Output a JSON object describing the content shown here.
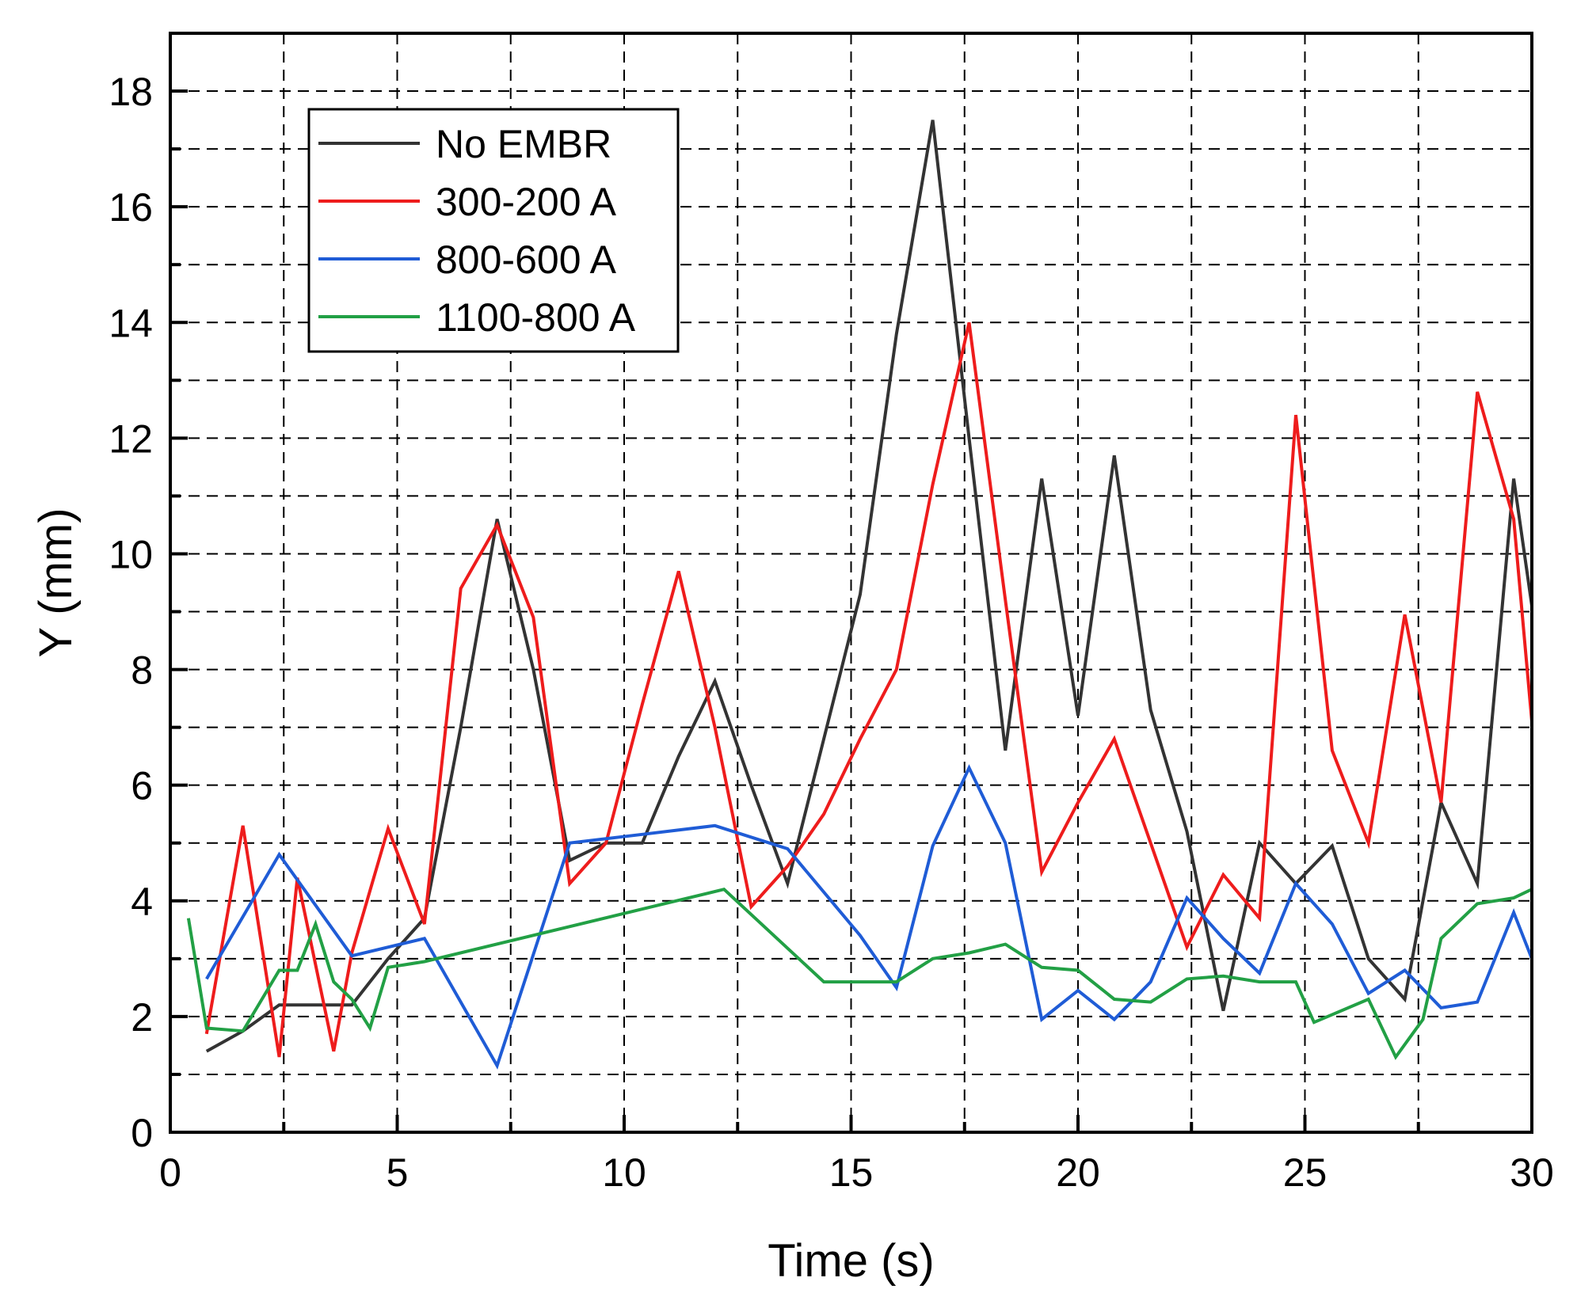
{
  "chart_data": {
    "type": "line",
    "title": "",
    "xlabel": "Time (s)",
    "ylabel": "Y (mm)",
    "xlim": [
      0,
      30
    ],
    "ylim": [
      0,
      19
    ],
    "xticks": [
      0,
      5,
      10,
      15,
      20,
      25,
      30
    ],
    "xtick_labels": [
      "0",
      "5",
      "10",
      "15",
      "20",
      "25",
      "30"
    ],
    "yticks": [
      0,
      2,
      4,
      6,
      8,
      10,
      12,
      14,
      16,
      18
    ],
    "ytick_labels": [
      "0",
      "2",
      "4",
      "6",
      "8",
      "10",
      "12",
      "14",
      "16",
      "18"
    ],
    "grid": true,
    "legend_position": "top-left",
    "series": [
      {
        "name": "No EMBR",
        "color": "#333333",
        "x": [
          0.8,
          1.6,
          2.4,
          3.2,
          4.0,
          4.8,
          5.6,
          6.4,
          7.2,
          8.0,
          8.8,
          9.6,
          10.4,
          11.2,
          12.0,
          12.8,
          13.6,
          14.4,
          15.2,
          16.0,
          16.8,
          17.6,
          18.4,
          19.2,
          20.0,
          20.8,
          21.6,
          22.4,
          23.2,
          24.0,
          24.8,
          25.6,
          26.4,
          27.2,
          28.0,
          28.8,
          29.6,
          30.0
        ],
        "y": [
          1.4,
          1.75,
          2.2,
          2.2,
          2.2,
          3.0,
          3.7,
          7.0,
          10.6,
          8.0,
          4.7,
          5.0,
          5.0,
          6.5,
          7.8,
          6.0,
          4.3,
          6.8,
          9.3,
          13.8,
          17.5,
          12.0,
          6.6,
          11.3,
          7.2,
          11.7,
          7.3,
          5.2,
          2.1,
          5.0,
          4.3,
          4.95,
          3.0,
          2.3,
          5.7,
          4.3,
          11.3,
          9.1
        ]
      },
      {
        "name": "300-200 A",
        "color": "#ee1c1c",
        "x": [
          0.8,
          1.6,
          2.4,
          2.8,
          3.6,
          4.0,
          4.8,
          5.6,
          6.4,
          7.2,
          8.0,
          8.8,
          9.6,
          10.4,
          11.2,
          12.0,
          12.8,
          13.6,
          14.4,
          15.2,
          16.0,
          16.8,
          17.6,
          18.4,
          19.2,
          20.0,
          20.8,
          21.6,
          22.4,
          23.2,
          24.0,
          24.8,
          25.6,
          26.4,
          27.2,
          28.0,
          28.8,
          29.6,
          30.0
        ],
        "y": [
          1.7,
          5.3,
          1.3,
          4.4,
          1.4,
          3.1,
          5.25,
          3.6,
          9.4,
          10.5,
          8.9,
          4.3,
          5.0,
          7.4,
          9.7,
          7.0,
          3.9,
          4.6,
          5.5,
          6.8,
          8.0,
          11.2,
          14.0,
          9.2,
          4.5,
          5.7,
          6.8,
          5.0,
          3.2,
          4.45,
          3.7,
          12.4,
          6.6,
          5.0,
          8.95,
          5.7,
          12.8,
          10.6,
          7.1
        ]
      },
      {
        "name": "800-600 A",
        "color": "#1f5cd6",
        "x": [
          0.8,
          2.4,
          4.0,
          5.6,
          7.2,
          8.8,
          10.4,
          12.0,
          13.6,
          15.2,
          16.0,
          16.8,
          17.6,
          18.4,
          19.2,
          20.0,
          20.8,
          21.6,
          22.4,
          23.2,
          24.0,
          24.8,
          25.6,
          26.4,
          27.2,
          28.0,
          28.8,
          29.6,
          30.0
        ],
        "y": [
          2.65,
          4.8,
          3.05,
          3.35,
          1.15,
          5.0,
          5.15,
          5.3,
          4.9,
          3.4,
          2.5,
          4.95,
          6.3,
          5.0,
          1.95,
          2.45,
          1.95,
          2.6,
          4.05,
          3.35,
          2.75,
          4.3,
          3.6,
          2.4,
          2.8,
          2.15,
          2.25,
          3.8,
          3.0
        ]
      },
      {
        "name": "1100-800 A",
        "color": "#22a045",
        "x": [
          0.4,
          0.8,
          1.6,
          2.4,
          2.8,
          3.2,
          3.6,
          4.0,
          4.4,
          4.8,
          5.6,
          12.2,
          14.4,
          15.2,
          16.0,
          16.8,
          17.6,
          18.4,
          19.2,
          20.0,
          20.8,
          21.6,
          22.4,
          23.2,
          24.0,
          24.8,
          25.2,
          26.4,
          27.0,
          27.6,
          28.0,
          28.8,
          29.6,
          30.0
        ],
        "y": [
          3.7,
          1.8,
          1.75,
          2.8,
          2.8,
          3.6,
          2.6,
          2.3,
          1.8,
          2.85,
          2.95,
          4.2,
          2.6,
          2.6,
          2.6,
          3.0,
          3.1,
          3.25,
          2.85,
          2.8,
          2.3,
          2.25,
          2.65,
          2.7,
          2.6,
          2.6,
          1.9,
          2.3,
          1.3,
          1.95,
          3.35,
          3.95,
          4.05,
          4.2
        ]
      }
    ]
  }
}
